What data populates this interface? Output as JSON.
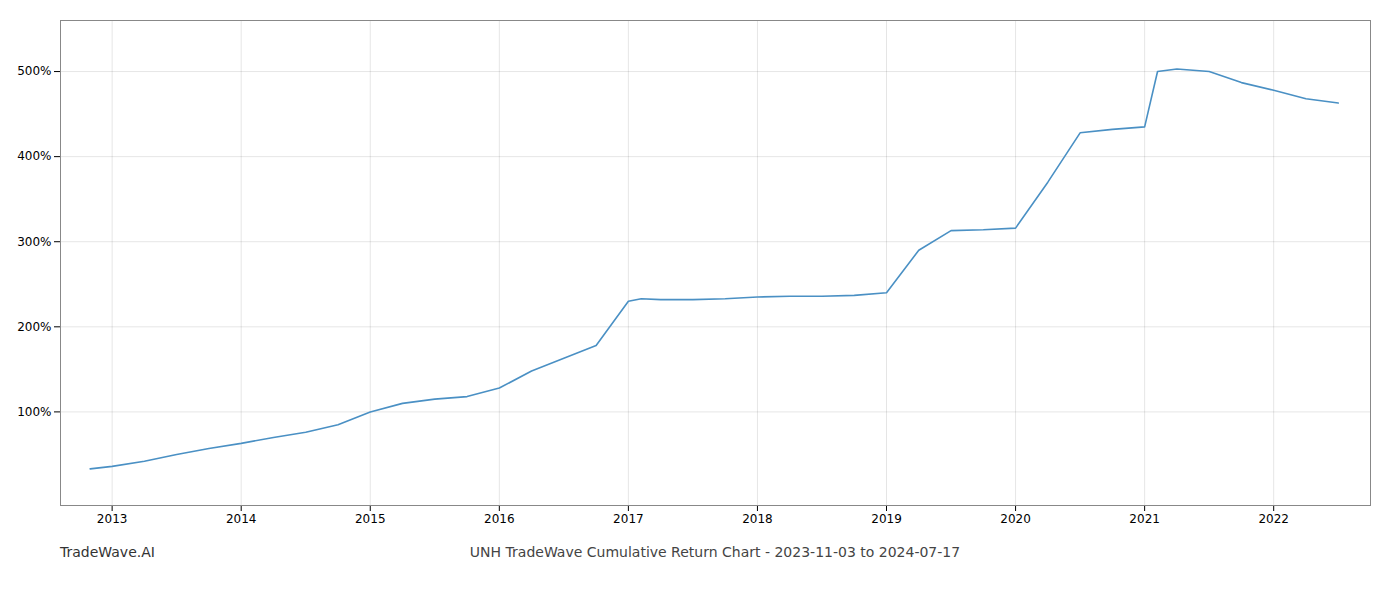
{
  "chart_data": {
    "type": "line",
    "title": "UNH TradeWave Cumulative Return Chart - 2023-11-03 to 2024-07-17",
    "annotations": [
      "TradeWave.AI"
    ],
    "x": [
      2012.83,
      2013.0,
      2013.25,
      2013.5,
      2013.75,
      2014.0,
      2014.25,
      2014.5,
      2014.75,
      2015.0,
      2015.25,
      2015.5,
      2015.75,
      2016.0,
      2016.25,
      2016.5,
      2016.75,
      2017.0,
      2017.1,
      2017.25,
      2017.5,
      2017.75,
      2018.0,
      2018.25,
      2018.5,
      2018.75,
      2019.0,
      2019.25,
      2019.5,
      2019.75,
      2020.0,
      2020.25,
      2020.5,
      2020.75,
      2021.0,
      2021.1,
      2021.25,
      2021.5,
      2021.75,
      2022.0,
      2022.25,
      2022.5
    ],
    "values": [
      33,
      36,
      42,
      50,
      57,
      63,
      70,
      76,
      85,
      100,
      110,
      115,
      118,
      128,
      148,
      163,
      178,
      230,
      233,
      232,
      232,
      233,
      235,
      236,
      236,
      237,
      240,
      290,
      313,
      314,
      316,
      370,
      428,
      432,
      435,
      500,
      503,
      500,
      487,
      478,
      468,
      463
    ],
    "color": "#4a90c4",
    "xlim": [
      2012.6,
      2022.75
    ],
    "xticks": [
      2013,
      2014,
      2015,
      2016,
      2017,
      2018,
      2019,
      2020,
      2021,
      2022
    ],
    "ylim": [
      -10,
      560
    ],
    "yticks": [
      {
        "value": 100,
        "label": "100%"
      },
      {
        "value": 200,
        "label": "200%"
      },
      {
        "value": 300,
        "label": "300%"
      },
      {
        "value": 400,
        "label": "400%"
      },
      {
        "value": 500,
        "label": "500%"
      }
    ],
    "grid": true
  }
}
